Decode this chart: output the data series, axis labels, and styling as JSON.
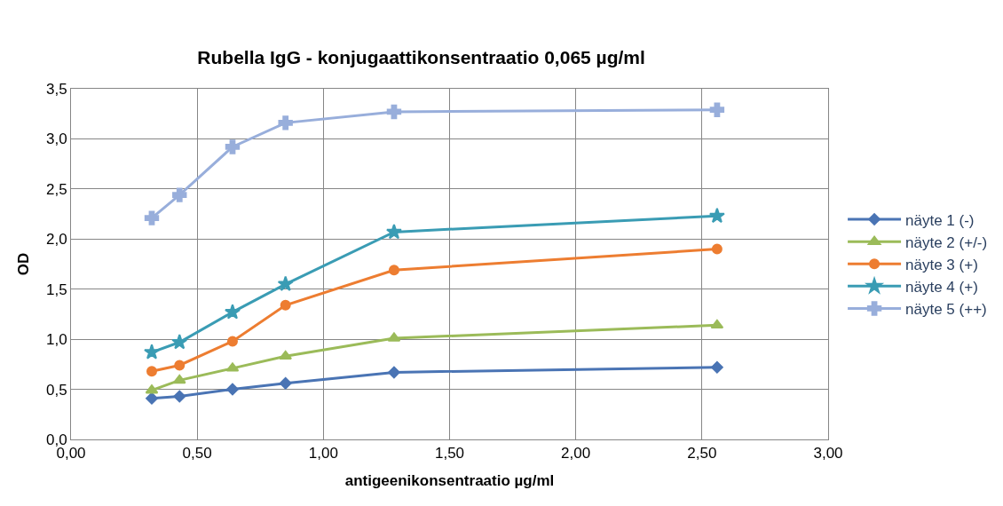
{
  "chart_data": {
    "type": "line",
    "title": "Rubella IgG - konjugaattikonsentraatio 0,065 µg/ml",
    "xlabel": "antigeenikonsentraatio µg/ml",
    "ylabel": "OD",
    "x": [
      0.32,
      0.43,
      0.64,
      0.85,
      1.28,
      2.56
    ],
    "series": [
      {
        "name": "näyte 1 (-)",
        "color": "#4a74b4",
        "marker": "diamond",
        "values": [
          0.41,
          0.43,
          0.5,
          0.56,
          0.67,
          0.72
        ]
      },
      {
        "name": "näyte 2 (+/-)",
        "color": "#9bbb59",
        "marker": "triangle",
        "values": [
          0.49,
          0.59,
          0.71,
          0.83,
          1.01,
          1.14
        ]
      },
      {
        "name": "näyte 3 (+)",
        "color": "#ed7d31",
        "marker": "circle",
        "values": [
          0.68,
          0.74,
          0.98,
          1.34,
          1.69,
          1.9
        ]
      },
      {
        "name": "näyte 4 (+)",
        "color": "#3a9cb4",
        "marker": "star",
        "values": [
          0.87,
          0.97,
          1.27,
          1.55,
          2.07,
          2.23
        ]
      },
      {
        "name": "näyte 5 (++)",
        "color": "#98aedb",
        "marker": "cross",
        "values": [
          2.21,
          2.44,
          2.92,
          3.16,
          3.27,
          3.29
        ]
      }
    ],
    "xlim": [
      0,
      3
    ],
    "xticks": [
      {
        "value": 0,
        "label": "0,00"
      },
      {
        "value": 0.5,
        "label": "0,50"
      },
      {
        "value": 1,
        "label": "1,00"
      },
      {
        "value": 1.5,
        "label": "1,50"
      },
      {
        "value": 2,
        "label": "2,00"
      },
      {
        "value": 2.5,
        "label": "2,50"
      },
      {
        "value": 3,
        "label": "3,00"
      }
    ],
    "ylim": [
      0,
      3.5
    ],
    "yticks": [
      {
        "value": 0,
        "label": "0,0"
      },
      {
        "value": 0.5,
        "label": "0,5"
      },
      {
        "value": 1,
        "label": "1,0"
      },
      {
        "value": 1.5,
        "label": "1,5"
      },
      {
        "value": 2,
        "label": "2,0"
      },
      {
        "value": 2.5,
        "label": "2,5"
      },
      {
        "value": 3,
        "label": "3,0"
      },
      {
        "value": 3.5,
        "label": "3,5"
      }
    ],
    "grid": true,
    "legend": "right"
  }
}
